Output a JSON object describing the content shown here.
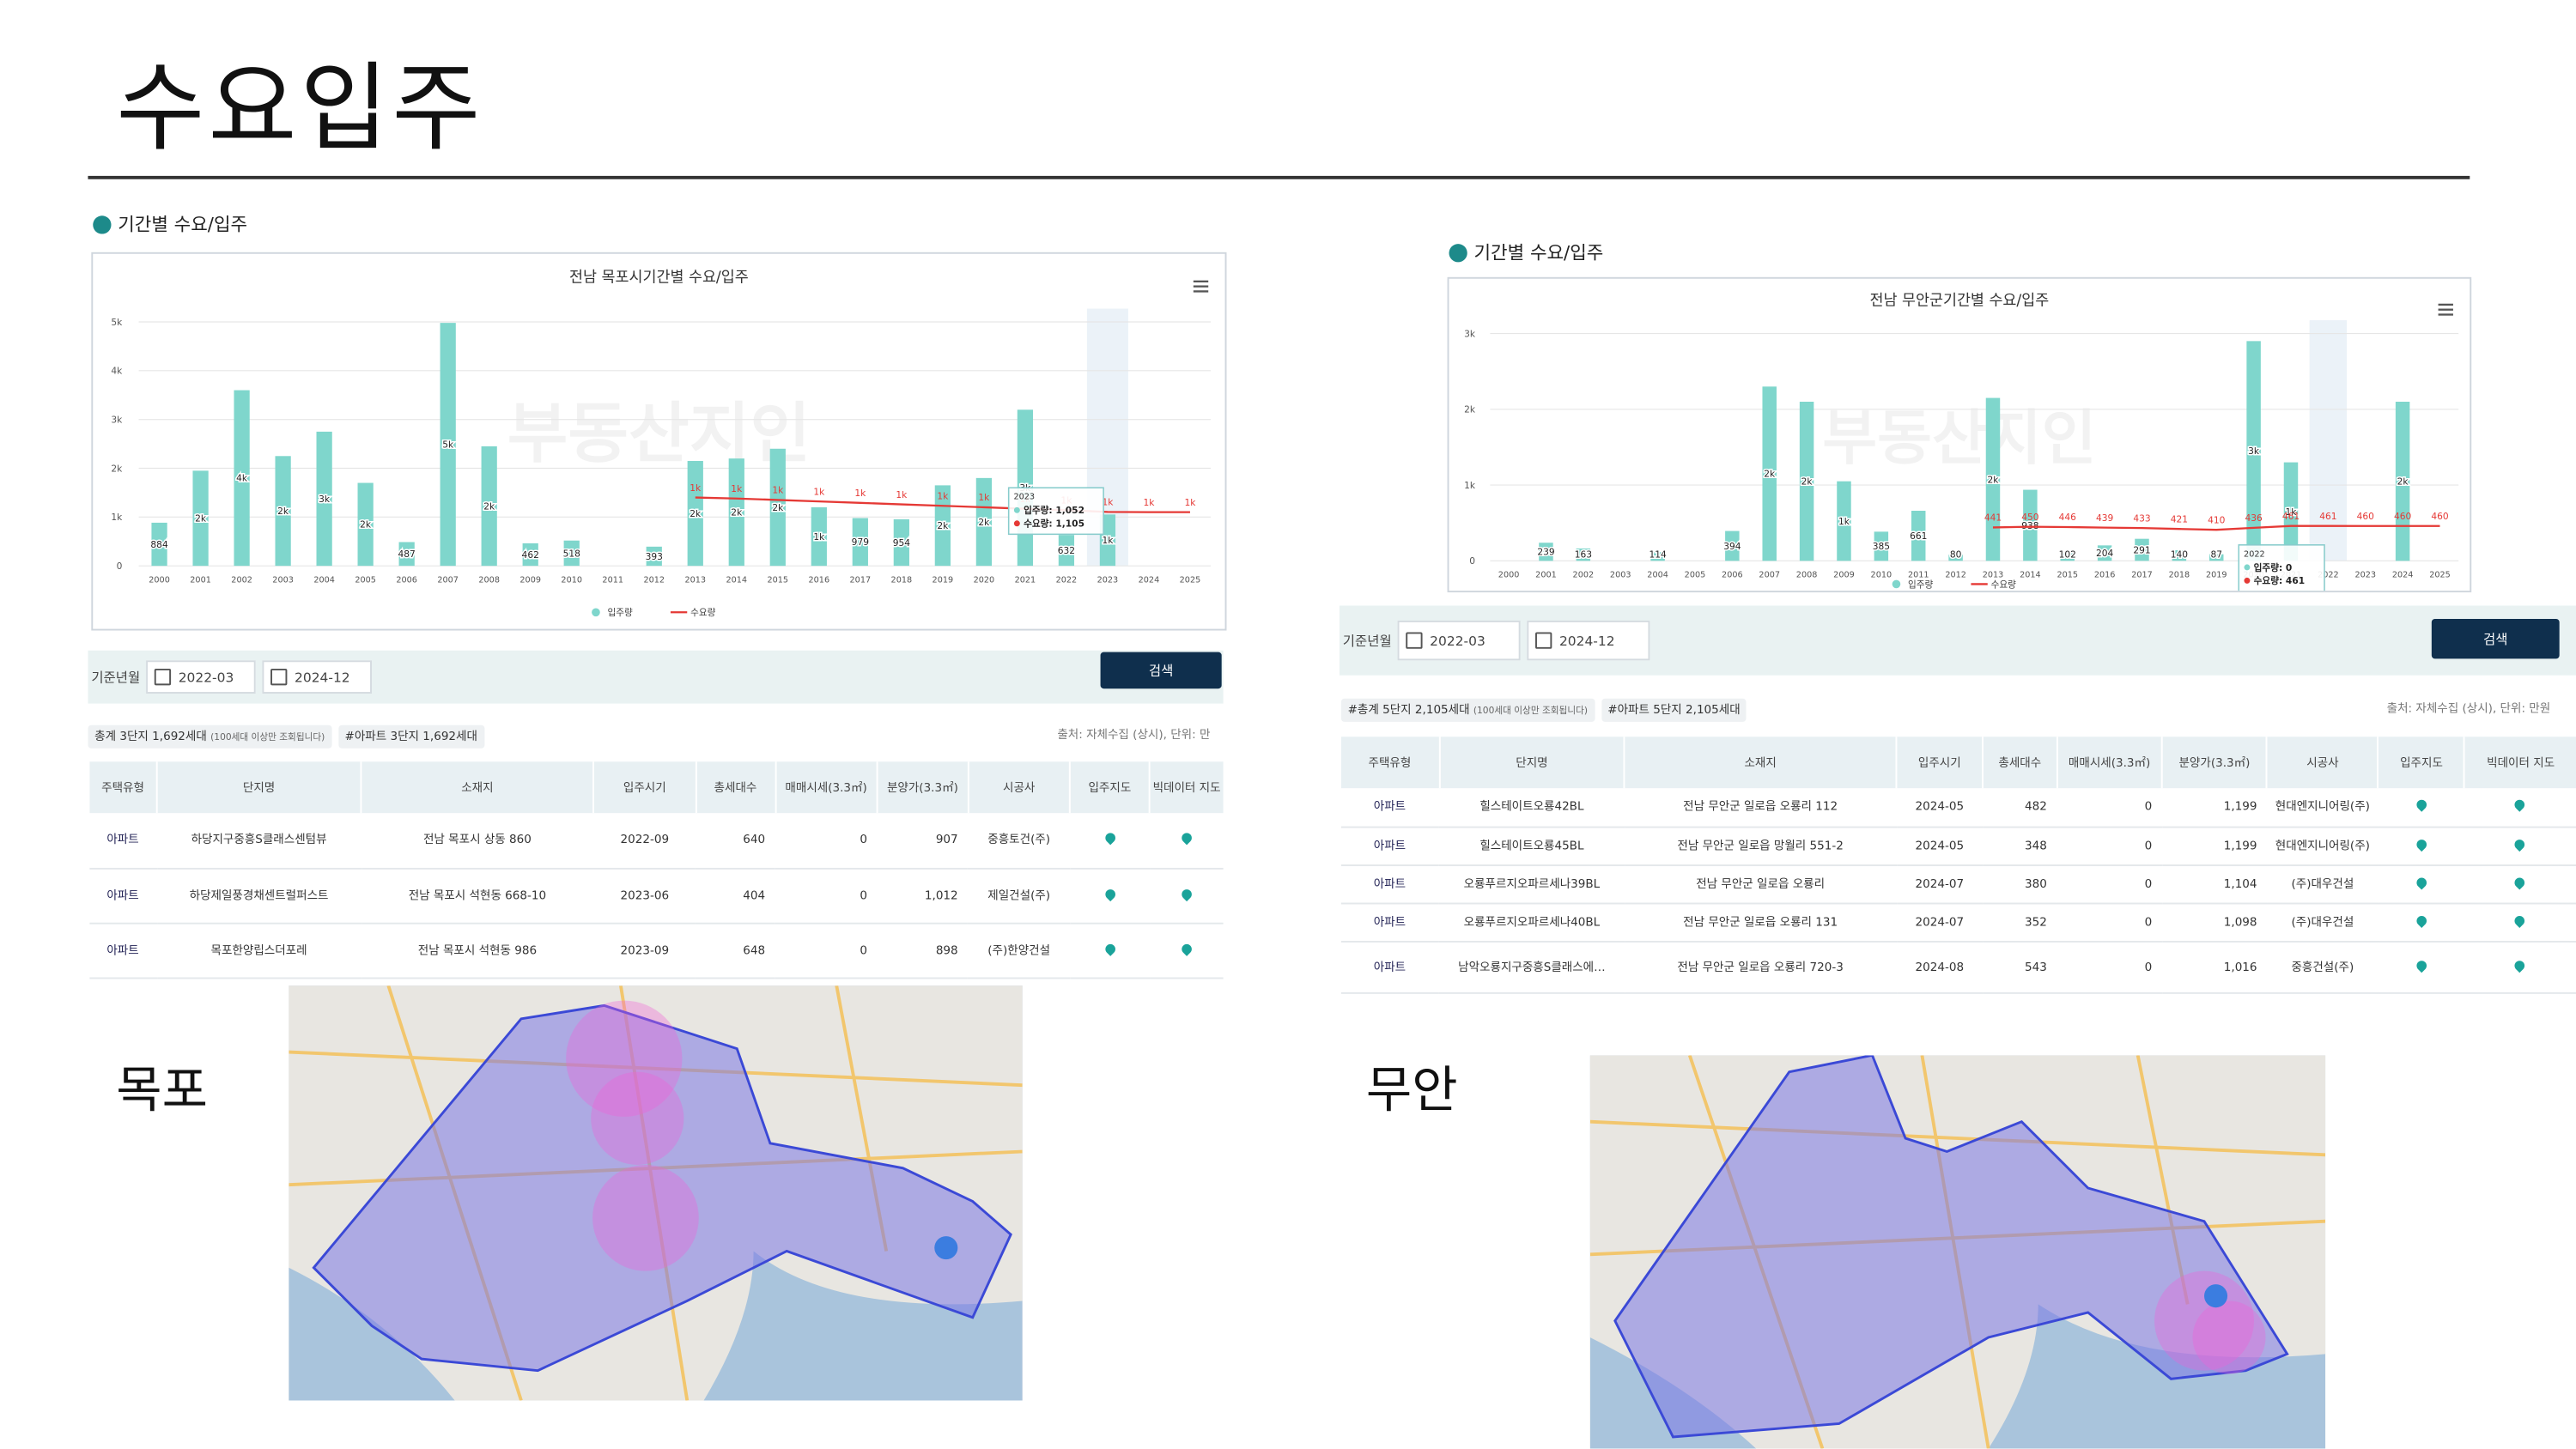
{
  "title": "수요입주",
  "chart_data": [
    {
      "type": "bar",
      "title": "전남 목포시기간별 수요/입주",
      "watermark": "부동산지인",
      "categories": [
        "2000",
        "2001",
        "2002",
        "2003",
        "2004",
        "2005",
        "2006",
        "2007",
        "2008",
        "2009",
        "2010",
        "2011",
        "2012",
        "2013",
        "2014",
        "2015",
        "2016",
        "2017",
        "2018",
        "2019",
        "2020",
        "2021",
        "2022",
        "2023",
        "2024",
        "2025"
      ],
      "series": [
        {
          "name": "입주량",
          "type": "bar",
          "color": "#7fd6cc",
          "values": [
            884,
            1950,
            3600,
            2250,
            2750,
            1700,
            487,
            4980,
            2450,
            462,
            518,
            null,
            393,
            2150,
            2200,
            2400,
            1200,
            979,
            954,
            1650,
            1800,
            3200,
            632,
            1052,
            null,
            null
          ],
          "value_labels": [
            "884",
            "2k",
            "4k",
            "2k",
            "3k",
            "2k",
            "487",
            "5k",
            "2k",
            "462",
            "518",
            null,
            "393",
            "2k",
            "2k",
            "2k",
            "1k",
            "979",
            "954",
            "2k",
            "2k",
            "3k",
            "632",
            "1k",
            null,
            null
          ]
        },
        {
          "name": "수요량",
          "type": "line",
          "color": "#e53935",
          "values": [
            null,
            null,
            null,
            null,
            null,
            null,
            null,
            null,
            null,
            null,
            null,
            null,
            null,
            1400,
            1380,
            1350,
            1320,
            1290,
            1260,
            1230,
            1200,
            1170,
            1140,
            1105,
            1100,
            1100
          ],
          "value_labels": [
            null,
            null,
            null,
            null,
            null,
            null,
            null,
            null,
            null,
            null,
            null,
            null,
            null,
            "1k",
            "1k",
            "1k",
            "1k",
            "1k",
            "1k",
            "1k",
            "1k",
            "1k",
            "1k",
            "1k",
            "1k",
            "1k"
          ]
        }
      ],
      "ylim": [
        0,
        5000
      ],
      "yticks": [
        0,
        {
          "value": 1000,
          "label": "1k"
        },
        {
          "value": 2000,
          "label": "2k"
        },
        {
          "value": 3000,
          "label": "3k"
        },
        {
          "value": 4000,
          "label": "4k"
        },
        {
          "value": 5000,
          "label": "5k"
        }
      ],
      "grid": true,
      "tooltip": {
        "title": "2023",
        "lines": [
          "입주량: 1,052",
          "수요량: 1,105"
        ]
      }
    },
    {
      "type": "bar",
      "title": "전남 무안군기간별 수요/입주",
      "watermark": "부동산지인",
      "categories": [
        "2000",
        "2001",
        "2002",
        "2003",
        "2004",
        "2005",
        "2006",
        "2007",
        "2008",
        "2009",
        "2010",
        "2011",
        "2012",
        "2013",
        "2014",
        "2015",
        "2016",
        "2017",
        "2018",
        "2019",
        "2020",
        "2021",
        "2022",
        "2023",
        "2024",
        "2025"
      ],
      "series": [
        {
          "name": "입주량",
          "type": "bar",
          "color": "#7fd6cc",
          "values": [
            null,
            239,
            163,
            null,
            114,
            null,
            394,
            2300,
            2100,
            1050,
            385,
            661,
            80,
            2150,
            938,
            102,
            204,
            291,
            140,
            87,
            2900,
            1300,
            0,
            null,
            2100,
            null
          ],
          "value_labels": [
            null,
            "239",
            "163",
            null,
            "114",
            null,
            "394",
            "2k",
            "2k",
            "1k",
            "385",
            "661",
            "80",
            "2k",
            "938",
            "102",
            "204",
            "291",
            "140",
            "87",
            "3k",
            "1k",
            null,
            null,
            "2k",
            null
          ]
        },
        {
          "name": "수요량",
          "type": "line",
          "color": "#e53935",
          "values": [
            null,
            null,
            null,
            null,
            null,
            null,
            null,
            null,
            null,
            null,
            null,
            null,
            null,
            441,
            450,
            446,
            439,
            433,
            421,
            410,
            436,
            461,
            461,
            460,
            460,
            460
          ]
        }
      ],
      "ylim": [
        0,
        3000
      ],
      "yticks": [
        0,
        {
          "value": 1000,
          "label": "1k"
        },
        {
          "value": 2000,
          "label": "2k"
        },
        {
          "value": 3000,
          "label": "3k"
        }
      ],
      "grid": true,
      "tooltip": {
        "title": "2022",
        "lines": [
          "입주량: 0",
          "수요량: 461"
        ]
      }
    }
  ],
  "panels": [
    {
      "label": "목포",
      "section": "기간별 수요/입주",
      "search": {
        "label": "기준년월",
        "from": "2022-03",
        "to": "2024-12",
        "button": "검색"
      },
      "summary": {
        "total": "총계 3단지 1,692세대",
        "note": "(100세대 이상만 조회됩니다)",
        "apt": "#아파트 3단지 1,692세대",
        "source": "출처: 자체수집 (상시), 단위: 만"
      },
      "table": {
        "headers": [
          "주택유형",
          "단지명",
          "소재지",
          "입주시기",
          "총세대수",
          "매매시세(3.3㎡)",
          "분양가(3.3㎡)",
          "시공사",
          "입주지도",
          "빅데이터 지도"
        ],
        "rows": [
          [
            "아파트",
            "하당지구중흥S클래스센텀뷰",
            "전남 목포시 상동 860",
            "2022-09",
            "640",
            "0",
            "907",
            "중흥토건(주)"
          ],
          [
            "아파트",
            "하당제일풍경채센트럴퍼스트",
            "전남 목포시 석현동 668-10",
            "2023-06",
            "404",
            "0",
            "1,012",
            "제일건설(주)"
          ],
          [
            "아파트",
            "목포한양립스더포레",
            "전남 목포시 석현동 986",
            "2023-09",
            "648",
            "0",
            "898",
            "(주)한양건설"
          ]
        ]
      }
    },
    {
      "label": "무안",
      "section": "기간별 수요/입주",
      "search": {
        "label": "기준년월",
        "from": "2022-03",
        "to": "2024-12",
        "button": "검색"
      },
      "summary": {
        "total": "#총계 5단지 2,105세대",
        "note": "(100세대 이상만 조회됩니다)",
        "apt": "#아파트 5단지 2,105세대",
        "source": "출처: 자체수집 (상시), 단위: 만원"
      },
      "table": {
        "headers": [
          "주택유형",
          "단지명",
          "소재지",
          "입주시기",
          "총세대수",
          "매매시세(3.3㎡)",
          "분양가(3.3㎡)",
          "시공사",
          "입주지도",
          "빅데이터 지도"
        ],
        "rows": [
          [
            "아파트",
            "힐스테이트오룡42BL",
            "전남 무안군 일로읍 오룡리 112",
            "2024-05",
            "482",
            "0",
            "1,199",
            "현대엔지니어링(주)"
          ],
          [
            "아파트",
            "힐스테이트오룡45BL",
            "전남 무안군 일로읍 망월리 551-2",
            "2024-05",
            "348",
            "0",
            "1,199",
            "현대엔지니어링(주)"
          ],
          [
            "아파트",
            "오룡푸르지오파르세나39BL",
            "전남 무안군 일로읍 오룡리",
            "2024-07",
            "380",
            "0",
            "1,104",
            "(주)대우건설"
          ],
          [
            "아파트",
            "오룡푸르지오파르세나40BL",
            "전남 무안군 일로읍 오룡리 131",
            "2024-07",
            "352",
            "0",
            "1,098",
            "(주)대우건설"
          ],
          [
            "아파트",
            "남악오룡지구중흥S클래스에…",
            "전남 무안군 일로읍 오룡리 720-3",
            "2024-08",
            "543",
            "0",
            "1,016",
            "중흥건설(주)"
          ]
        ]
      }
    }
  ]
}
